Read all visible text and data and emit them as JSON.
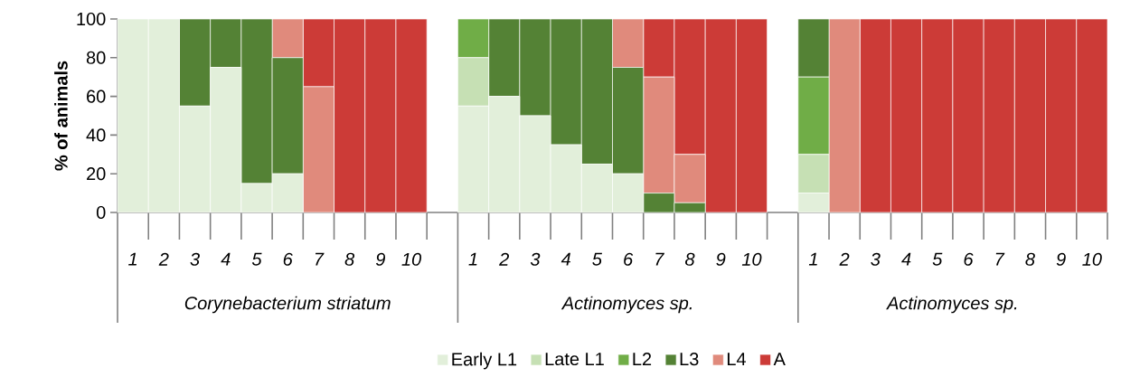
{
  "chart_data": {
    "type": "bar",
    "stacked": true,
    "categories": [
      "1",
      "2",
      "3",
      "4",
      "5",
      "6",
      "7",
      "8",
      "9",
      "10",
      null,
      "1",
      "2",
      "3",
      "4",
      "5",
      "6",
      "7",
      "8",
      "9",
      "10",
      null,
      "1",
      "2",
      "3",
      "4",
      "5",
      "6",
      "7",
      "8",
      "9",
      "10"
    ],
    "series": [
      {
        "name": "Early L1",
        "color": "#e2efda",
        "values": [
          100,
          100,
          55,
          75,
          15,
          20,
          0,
          0,
          0,
          0,
          null,
          55,
          60,
          50,
          35,
          25,
          20,
          0,
          0,
          0,
          0,
          null,
          10,
          0,
          0,
          0,
          0,
          0,
          0,
          0,
          0,
          0
        ]
      },
      {
        "name": "Late L1",
        "color": "#c6e0b4",
        "values": [
          0,
          0,
          0,
          0,
          0,
          0,
          0,
          0,
          0,
          0,
          null,
          25,
          0,
          0,
          0,
          0,
          0,
          0,
          0,
          0,
          0,
          null,
          20,
          0,
          0,
          0,
          0,
          0,
          0,
          0,
          0,
          0
        ]
      },
      {
        "name": "L2",
        "color": "#70ad47",
        "values": [
          0,
          0,
          0,
          0,
          0,
          0,
          0,
          0,
          0,
          0,
          null,
          20,
          0,
          0,
          0,
          0,
          0,
          0,
          0,
          0,
          0,
          null,
          40,
          0,
          0,
          0,
          0,
          0,
          0,
          0,
          0,
          0
        ]
      },
      {
        "name": "L3",
        "color": "#548235",
        "values": [
          0,
          0,
          45,
          25,
          85,
          60,
          0,
          0,
          0,
          0,
          null,
          0,
          40,
          50,
          65,
          75,
          55,
          10,
          5,
          0,
          0,
          null,
          30,
          0,
          0,
          0,
          0,
          0,
          0,
          0,
          0,
          0
        ]
      },
      {
        "name": "L4",
        "color": "#e08a7c",
        "values": [
          0,
          0,
          0,
          0,
          0,
          20,
          65,
          0,
          0,
          0,
          null,
          0,
          0,
          0,
          0,
          0,
          25,
          60,
          25,
          0,
          0,
          null,
          0,
          100,
          0,
          0,
          0,
          0,
          0,
          0,
          0,
          0
        ]
      },
      {
        "name": "A",
        "color": "#cc3b37",
        "values": [
          0,
          0,
          0,
          0,
          0,
          0,
          35,
          100,
          100,
          100,
          null,
          0,
          0,
          0,
          0,
          0,
          0,
          30,
          70,
          100,
          100,
          null,
          0,
          0,
          100,
          100,
          100,
          100,
          100,
          100,
          100,
          100
        ]
      }
    ],
    "ylabel": "% of animals",
    "ylim": [
      0,
      100
    ],
    "yticks": [
      0,
      20,
      40,
      60,
      80,
      100
    ],
    "legend": "bottom",
    "annotations": [
      "Corynebacterium striatum",
      "Actinomyces sp.",
      "Actinomyces sp."
    ]
  }
}
